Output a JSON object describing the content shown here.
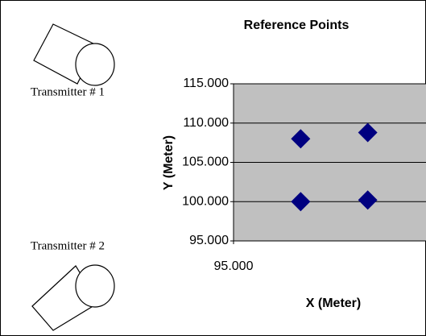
{
  "chart_data": {
    "type": "scatter",
    "title": "Reference Points",
    "xlabel": "X (Meter)",
    "ylabel": "Y (Meter)",
    "annotations": [
      "Transmitter # 1",
      "Transmitter # 2"
    ],
    "series": [
      {
        "color": "#000080",
        "x": [
          100,
          100,
          105,
          105
        ],
        "y": [
          100,
          108,
          108.8,
          100.2
        ]
      }
    ],
    "xlim": [
      95,
      110
    ],
    "xticks": [
      {
        "value": 95,
        "label": "95.000"
      }
    ],
    "ylim": [
      95,
      115
    ],
    "yticks": [
      {
        "value": 95,
        "label": "95.000"
      },
      {
        "value": 100,
        "label": "100.000"
      },
      {
        "value": 105,
        "label": "105.000"
      },
      {
        "value": 110,
        "label": "110.000"
      },
      {
        "value": 115,
        "label": "115.000"
      }
    ],
    "grid": true,
    "plot_background": "#c0c0c0"
  }
}
